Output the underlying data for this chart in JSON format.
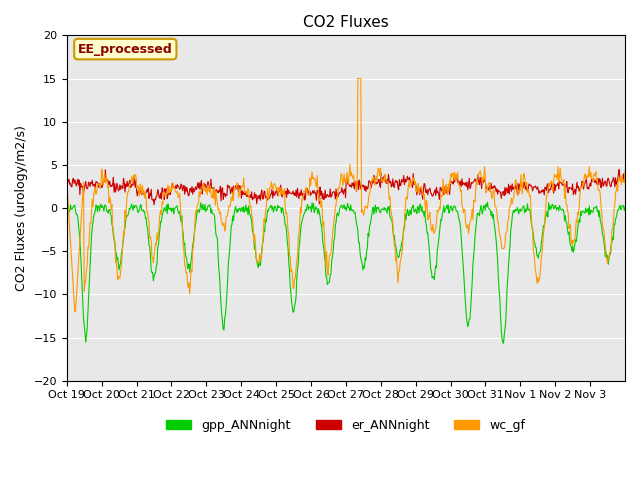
{
  "title": "CO2 Fluxes",
  "ylabel": "CO2 Fluxes (urology/m2/s)",
  "ylim": [
    -20,
    20
  ],
  "yticks": [
    -20,
    -15,
    -10,
    -5,
    0,
    5,
    10,
    15,
    20
  ],
  "background_color": "#e8e8e8",
  "annotation_text": "EE_processed",
  "annotation_bg": "#ffffcc",
  "annotation_border": "#cc9900",
  "legend_labels": [
    "gpp_ANNnight",
    "er_ANNnight",
    "wc_gf"
  ],
  "colors": {
    "gpp_ANNnight": "#00cc00",
    "er_ANNnight": "#cc0000",
    "wc_gf": "#ff9900"
  },
  "n_days": 16,
  "points_per_day": 48,
  "x_tick_positions": [
    0,
    1,
    2,
    3,
    4,
    5,
    6,
    7,
    8,
    9,
    10,
    11,
    12,
    13,
    14,
    15
  ],
  "x_tick_labels": [
    "Oct 19",
    "Oct 20",
    "Oct 21",
    "Oct 22",
    "Oct 23",
    "Oct 24",
    "Oct 25",
    "Oct 26",
    "Oct 27",
    "Oct 28",
    "Oct 29",
    "Oct 30",
    "Oct 31",
    "Nov 1",
    "Nov 2",
    "Nov 3"
  ]
}
